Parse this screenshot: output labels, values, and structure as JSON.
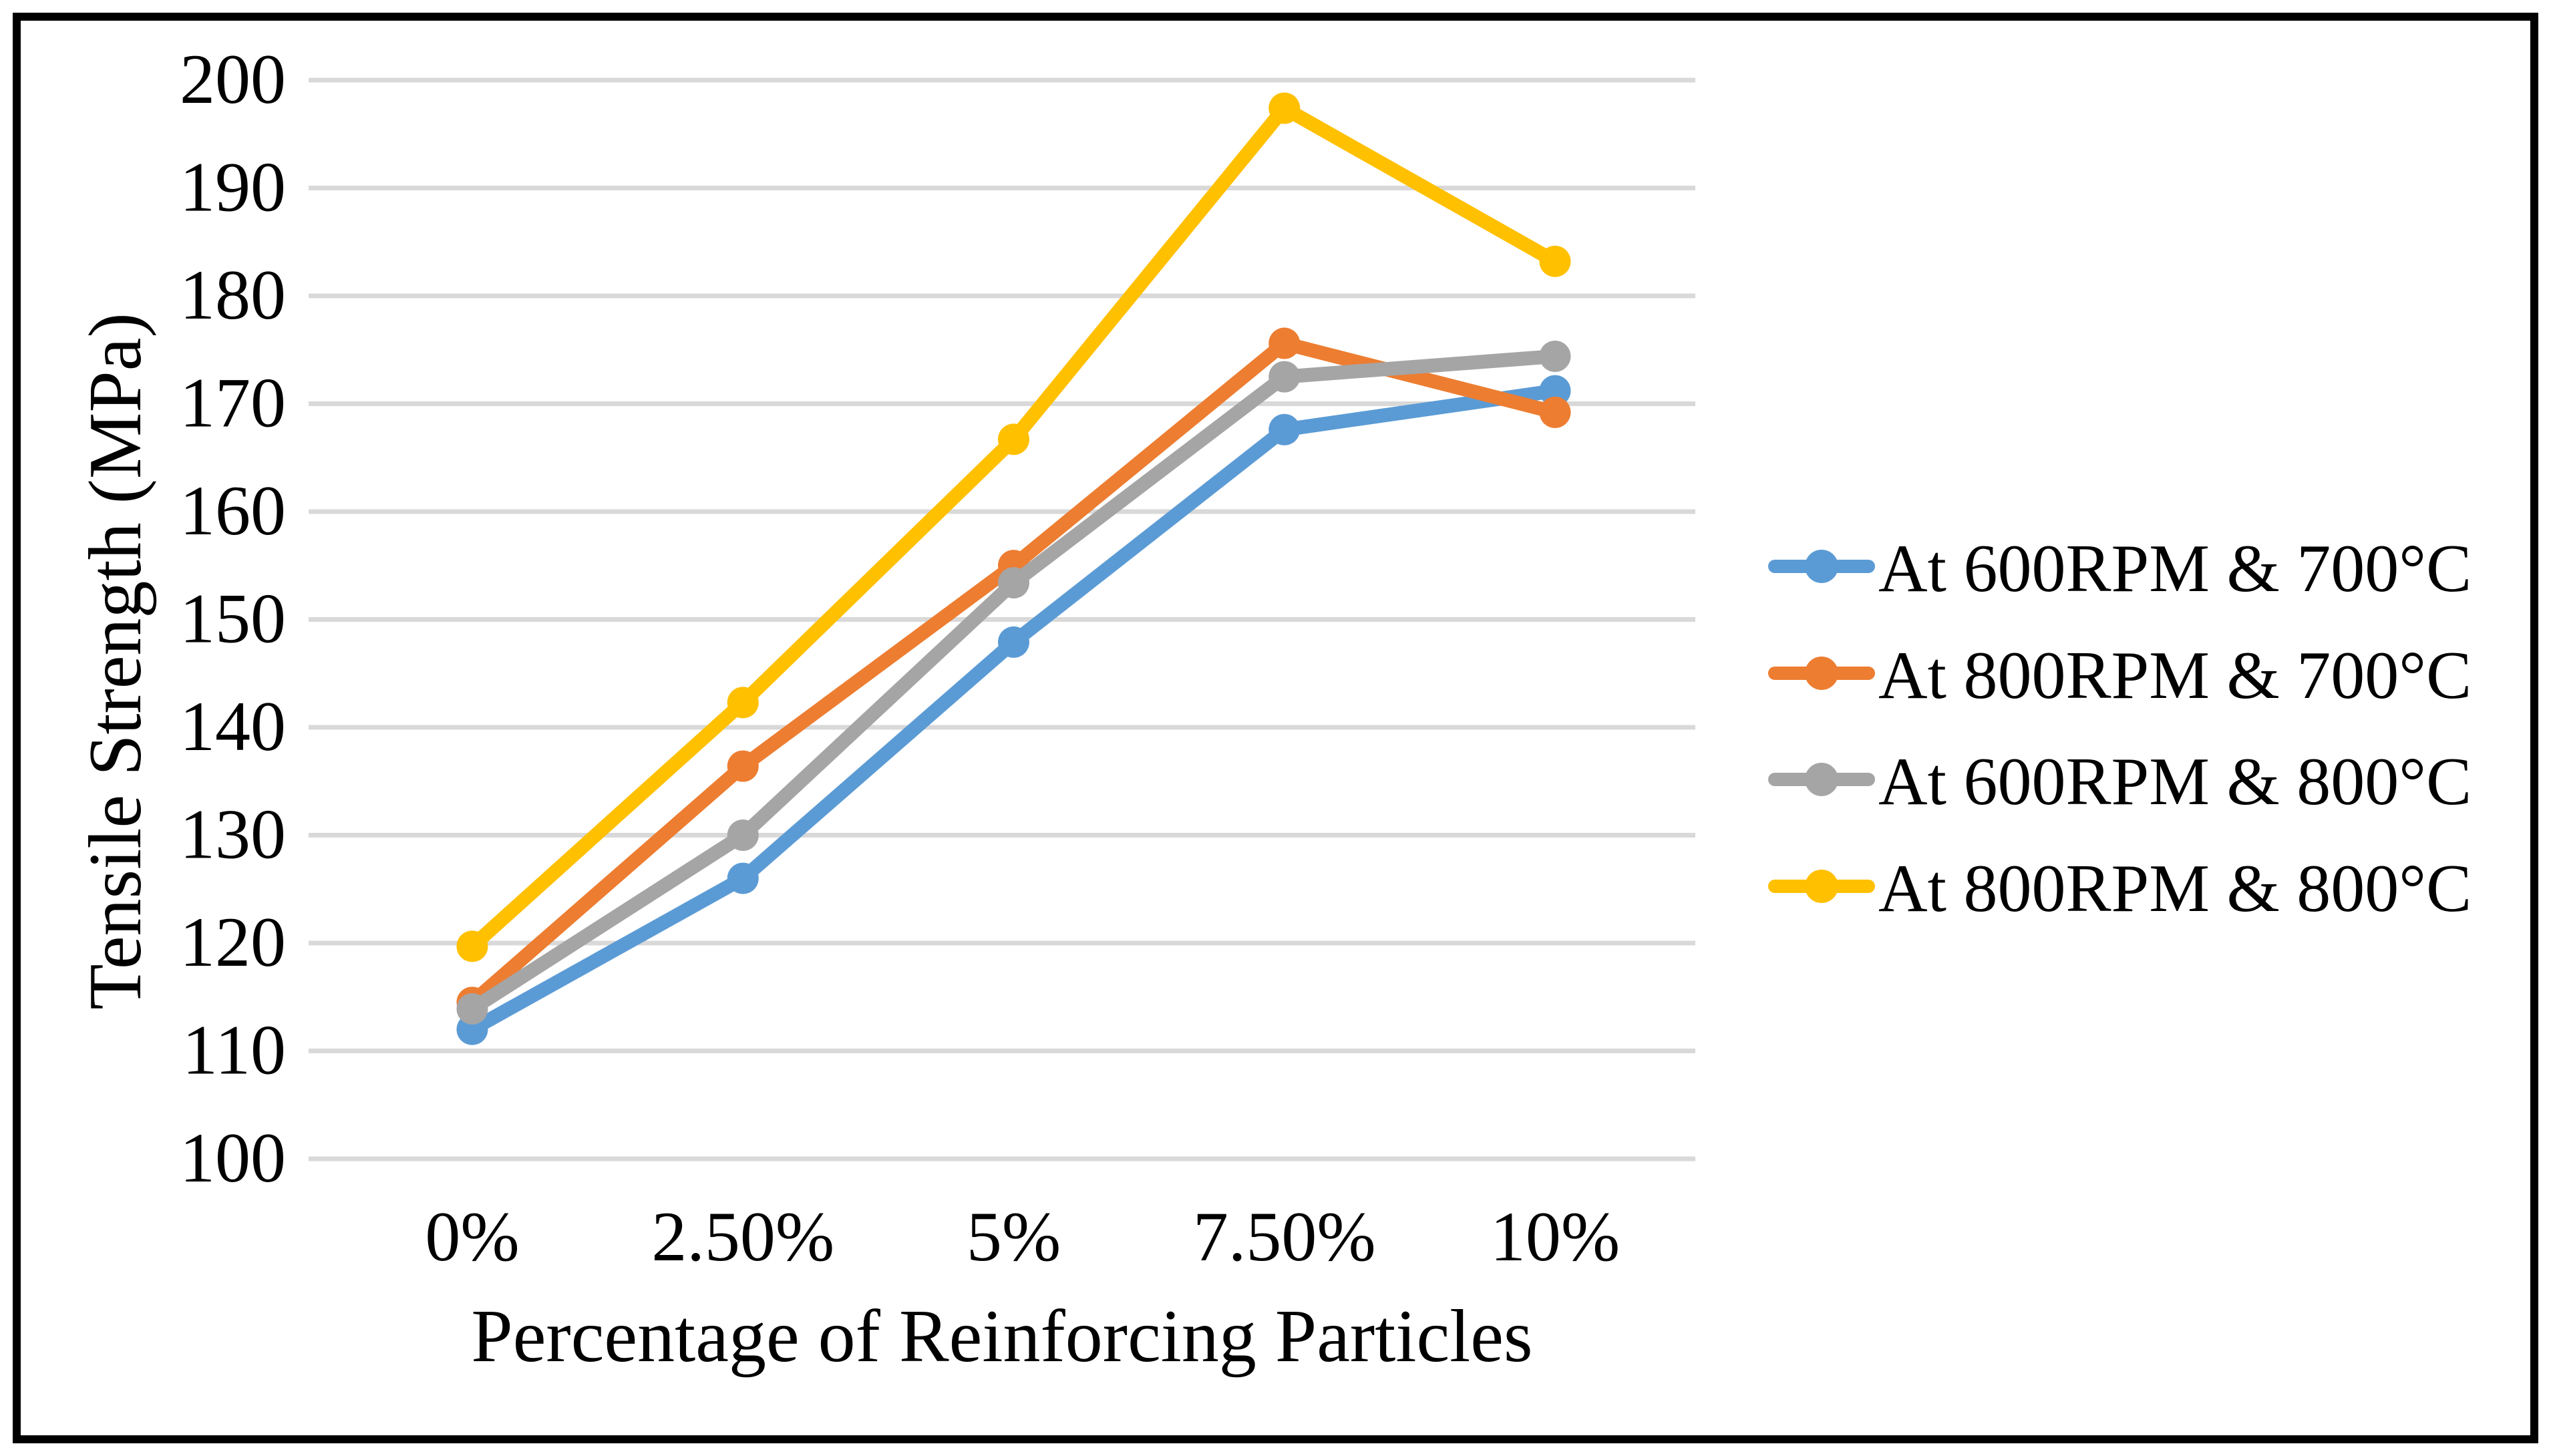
{
  "figure": {
    "background": "#FFFFFF",
    "border_color": "#000000"
  },
  "chart_data": {
    "type": "line",
    "title": "",
    "xlabel": "Percentage of Reinforcing Particles",
    "ylabel": "Tensile Strength (MPa)",
    "categories": [
      "0%",
      "2.50%",
      "5%",
      "7.50%",
      "10%"
    ],
    "series": [
      {
        "name": "At 600RPM & 700°C",
        "color": "#5B9BD5",
        "values": [
          112.0,
          126.0,
          147.9,
          167.6,
          171.2
        ]
      },
      {
        "name": "At 800RPM & 700°C",
        "color": "#ED7D31",
        "values": [
          114.5,
          136.4,
          155.0,
          175.6,
          169.2
        ]
      },
      {
        "name": "At 600RPM & 800°C",
        "color": "#A5A5A5",
        "values": [
          113.9,
          130.0,
          153.4,
          172.5,
          174.4
        ]
      },
      {
        "name": "At 800RPM & 800°C",
        "color": "#FFC000",
        "values": [
          119.7,
          142.3,
          166.7,
          197.4,
          183.2
        ]
      }
    ],
    "ylim": [
      100,
      200
    ],
    "ytick_step": 10,
    "yticks": [
      100,
      110,
      120,
      130,
      140,
      150,
      160,
      170,
      180,
      190,
      200
    ],
    "grid": true,
    "gridline_color": "#D9D9D9",
    "tick_label_color": "#000000",
    "legend_position": "right",
    "legend_marker": "line-with-circle",
    "marker": "circle"
  }
}
